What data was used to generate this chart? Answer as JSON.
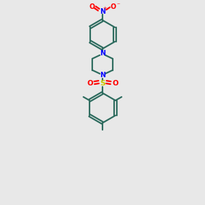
{
  "bg_color": "#e8e8e8",
  "bond_color": "#2d6b5e",
  "N_color": "#0000ff",
  "S_color": "#cccc00",
  "O_color": "#ff0000",
  "line_width": 1.6,
  "figsize": [
    3.0,
    3.0
  ],
  "dpi": 100,
  "xlim": [
    0,
    10
  ],
  "ylim": [
    0,
    15
  ]
}
